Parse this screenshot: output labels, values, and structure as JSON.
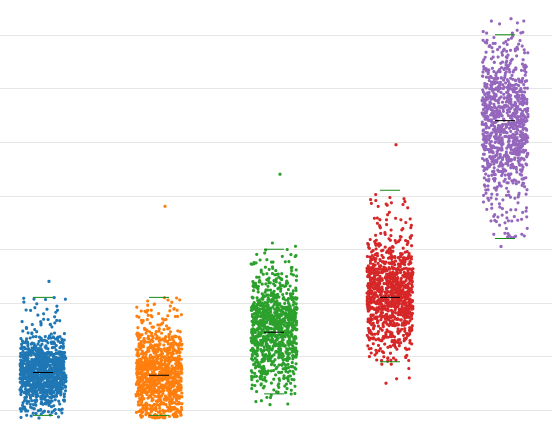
{
  "chart_data": {
    "type": "scatter",
    "subtype": "strip-plot-jitter",
    "title": "",
    "xlabel": "",
    "ylabel": "",
    "grid": true,
    "legend": "none",
    "ylim": [
      -1,
      7.3
    ],
    "gridline_values": [
      0,
      1,
      2,
      3,
      4,
      5,
      6,
      7
    ],
    "series": [
      {
        "color": "#1f77b4",
        "count": 1000,
        "summary": {
          "min": -0.15,
          "whisker_low": -0.1,
          "median": 0.7,
          "whisker_high": 2.1,
          "max": 2.4
        },
        "dense_range": [
          0.25,
          1.15
        ]
      },
      {
        "color": "#ff7f0e",
        "count": 1000,
        "summary": {
          "min": -0.15,
          "whisker_low": -0.1,
          "median": 0.65,
          "whisker_high": 2.1,
          "max": 3.8
        },
        "dense_range": [
          0.1,
          1.25
        ]
      },
      {
        "color": "#2ca02c",
        "count": 1000,
        "summary": {
          "min": 0.1,
          "whisker_low": 0.3,
          "median": 1.45,
          "whisker_high": 3.0,
          "max": 4.4
        },
        "dense_range": [
          0.9,
          2.3
        ]
      },
      {
        "color": "#d62728",
        "count": 1000,
        "summary": {
          "min": 0.5,
          "whisker_low": 0.9,
          "median": 2.1,
          "whisker_high": 4.1,
          "max": 4.95
        },
        "dense_range": [
          1.6,
          2.9
        ]
      },
      {
        "color": "#9467bd",
        "count": 1000,
        "summary": {
          "min": 3.05,
          "whisker_low": 3.2,
          "median": 5.4,
          "whisker_high": 7.0,
          "max": 7.3
        },
        "dense_range": [
          4.4,
          6.3
        ]
      }
    ]
  }
}
